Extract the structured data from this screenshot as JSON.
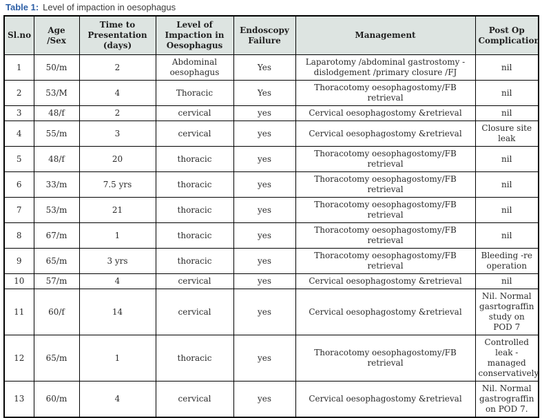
{
  "title": {
    "label": "Table 1:",
    "text": "Level of impaction in oesophagus"
  },
  "colors": {
    "title_accent": "#2d5fa6",
    "header_bg": "#dde4e1",
    "border": "#000000",
    "body_text": "#2b2b2b"
  },
  "table": {
    "headers": {
      "sl": "Sl.no",
      "age_sex": "Age /Sex",
      "time": "Time to Presentation (days)",
      "level": "Level of Impaction in Oesophagus",
      "endoscopy": "Endoscopy Failure",
      "management": "Management",
      "post_op": "Post Op Complication"
    },
    "rows": [
      {
        "sl": "1",
        "age_sex": "50/m",
        "time": "2",
        "level": "Abdominal oesophagus",
        "endoscopy": "Yes",
        "management": "Laparotomy /abdominal gastrostomy -dislodgement /primary closure /FJ",
        "post_op": "nil"
      },
      {
        "sl": "2",
        "age_sex": "53/M",
        "time": "4",
        "level": "Thoracic",
        "endoscopy": "Yes",
        "management": "Thoracotomy oesophagostomy/FB retrieval",
        "post_op": "nil"
      },
      {
        "sl": "3",
        "age_sex": "48/f",
        "time": "2",
        "level": "cervical",
        "endoscopy": "yes",
        "management": "Cervical oesophagostomy &retrieval",
        "post_op": "nil"
      },
      {
        "sl": "4",
        "age_sex": "55/m",
        "time": "3",
        "level": "cervical",
        "endoscopy": "yes",
        "management": "Cervical oesophagostomy &retrieval",
        "post_op": "Closure site leak"
      },
      {
        "sl": "5",
        "age_sex": "48/f",
        "time": "20",
        "level": "thoracic",
        "endoscopy": "yes",
        "management": "Thoracotomy oesophagostomy/FB retrieval",
        "post_op": "nil"
      },
      {
        "sl": "6",
        "age_sex": "33/m",
        "time": "7.5 yrs",
        "level": "thoracic",
        "endoscopy": "yes",
        "management": "Thoracotomy oesophagostomy/FB retrieval",
        "post_op": "nil"
      },
      {
        "sl": "7",
        "age_sex": "53/m",
        "time": "21",
        "level": "thoracic",
        "endoscopy": "yes",
        "management": "Thoracotomy oesophagostomy/FB retrieval",
        "post_op": "nil"
      },
      {
        "sl": "8",
        "age_sex": "67/m",
        "time": "1",
        "level": "thoracic",
        "endoscopy": "yes",
        "management": "Thoracotomy oesophagostomy/FB retrieval",
        "post_op": "nil"
      },
      {
        "sl": "9",
        "age_sex": "65/m",
        "time": "3 yrs",
        "level": "thoracic",
        "endoscopy": "yes",
        "management": "Thoracotomy oesophagostomy/FB retrieval",
        "post_op": "Bleeding -re operation"
      },
      {
        "sl": "10",
        "age_sex": "57/m",
        "time": "4",
        "level": "cervical",
        "endoscopy": "yes",
        "management": "Cervical oesophagostomy &retrieval",
        "post_op": "nil"
      },
      {
        "sl": "11",
        "age_sex": "60/f",
        "time": "14",
        "level": "cervical",
        "endoscopy": "yes",
        "management": "Cervical oesophagostomy &retrieval",
        "post_op": "Nil. Normal gasrtograffin study on POD 7"
      },
      {
        "sl": "12",
        "age_sex": "65/m",
        "time": "1",
        "level": "thoracic",
        "endoscopy": "yes",
        "management": "Thoracotomy oesophagostomy/FB retrieval",
        "post_op": "Controlled leak -managed conservatively"
      },
      {
        "sl": "13",
        "age_sex": "60/m",
        "time": "4",
        "level": "cervical",
        "endoscopy": "yes",
        "management": "Cervical oesophagostomy &retrieval",
        "post_op": "Nil. Normal gastrograffin on POD 7."
      }
    ]
  }
}
